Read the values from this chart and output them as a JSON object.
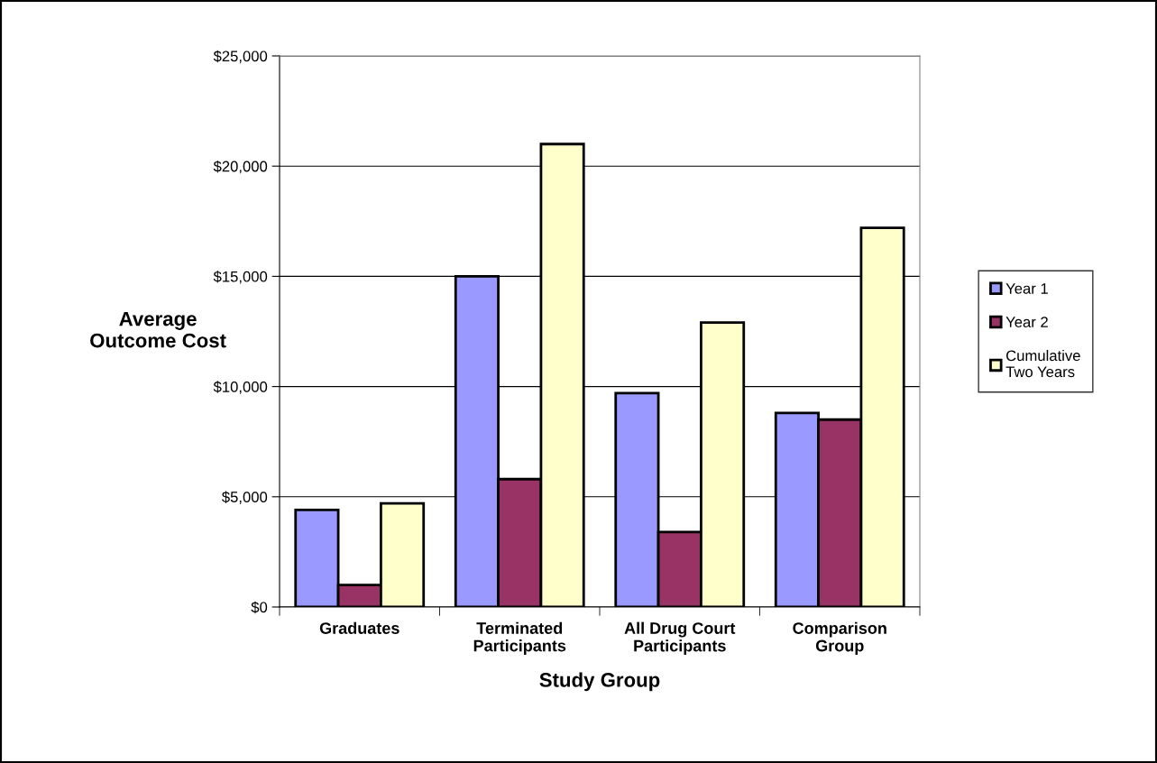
{
  "chart_data": {
    "type": "bar",
    "xlabel": "Study Group",
    "ylabel": "Average\nOutcome Cost",
    "categories": [
      "Graduates",
      "Terminated\nParticipants",
      "All Drug Court\nParticipants",
      "Comparison\nGroup"
    ],
    "series": [
      {
        "name": "Year 1",
        "color": "#9999ff",
        "values": [
          4400,
          15000,
          9700,
          8800
        ]
      },
      {
        "name": "Year 2",
        "color": "#993366",
        "values": [
          1000,
          5800,
          3400,
          8500
        ]
      },
      {
        "name": "Cumulative\nTwo Years",
        "color": "#ffffcc",
        "values": [
          4700,
          21000,
          12900,
          17200
        ]
      }
    ],
    "ylim": [
      0,
      25000
    ],
    "yticks": [
      {
        "value": 0,
        "label": "$0"
      },
      {
        "value": 5000,
        "label": "$5,000"
      },
      {
        "value": 10000,
        "label": "$10,000"
      },
      {
        "value": 15000,
        "label": "$15,000"
      },
      {
        "value": 20000,
        "label": "$20,000"
      },
      {
        "value": 25000,
        "label": "$25,000"
      }
    ],
    "grid": "y",
    "legend": "right"
  }
}
